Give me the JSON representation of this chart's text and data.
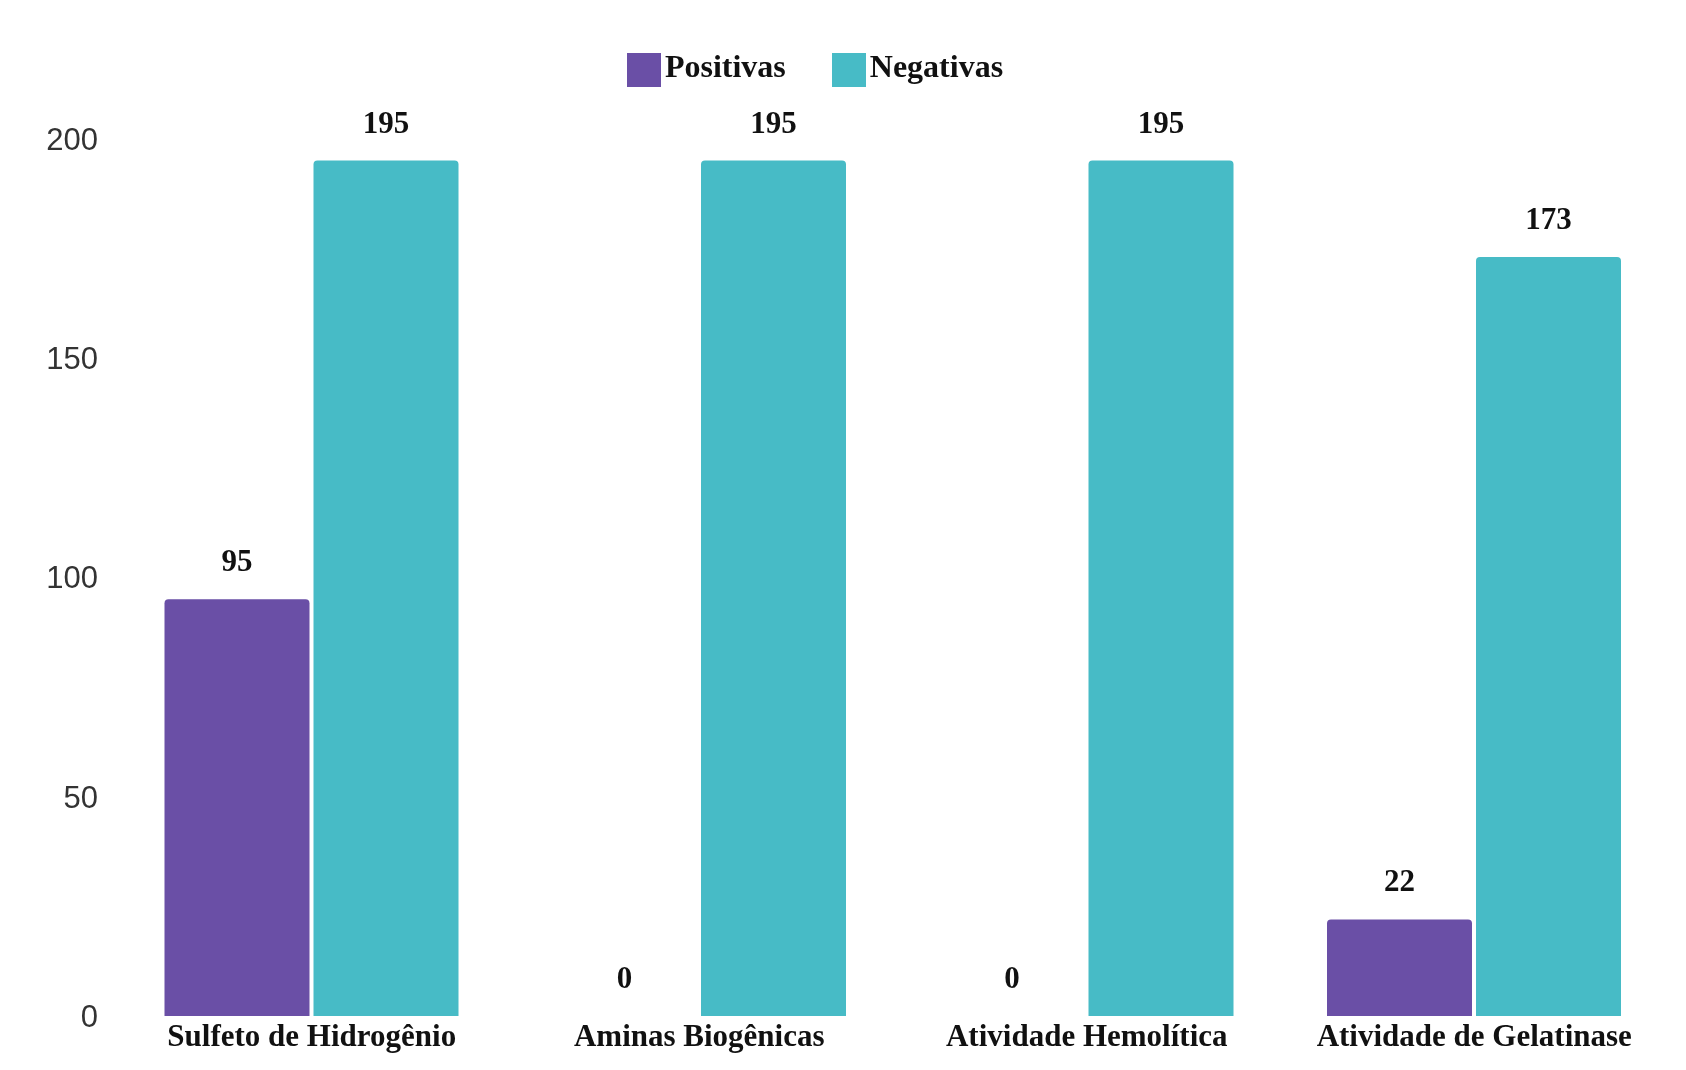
{
  "chart_data": {
    "type": "bar",
    "categories": [
      "Sulfeto de Hidrogênio",
      "Aminas Biogênicas",
      "Atividade Hemolítica",
      "Atividade de Gelatinase"
    ],
    "series": [
      {
        "name": "Positivas",
        "color": "#6a4fa6",
        "values": [
          95,
          0,
          0,
          22
        ]
      },
      {
        "name": "Negativas",
        "color": "#47bbc6",
        "values": [
          195,
          195,
          195,
          173
        ]
      }
    ],
    "ylim": [
      0,
      200
    ],
    "yticks": [
      0,
      50,
      100,
      150,
      200
    ],
    "legend": "top",
    "data_labels": true
  }
}
